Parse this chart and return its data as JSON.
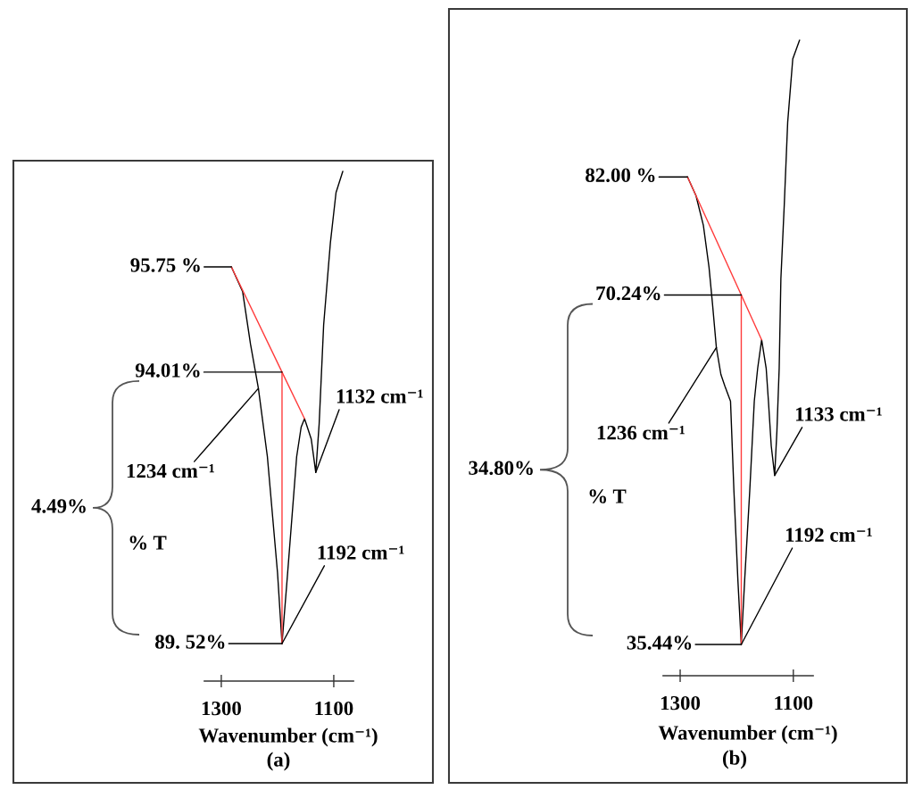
{
  "chart_data": [
    {
      "type": "line",
      "title": "(a)",
      "xlabel": "Wavenumber (cm⁻¹)",
      "ylabel": "% T",
      "xlim": [
        1330,
        1065
      ],
      "xticks": [
        1300,
        1100
      ],
      "tick_labels": "x",
      "series": [
        {
          "color": "#000000",
          "x": [
            1282,
            1262,
            1248,
            1234,
            1218,
            1200,
            1192,
            1182,
            1166,
            1158,
            1152,
            1140,
            1132,
            1126,
            1118,
            1106,
            1096,
            1084
          ],
          "values": [
            95.75,
            95.34,
            94.47,
            93.74,
            92.61,
            90.69,
            89.52,
            90.69,
            92.61,
            93.1,
            93.24,
            92.9,
            92.35,
            93.15,
            94.79,
            96.15,
            96.98,
            97.33
          ],
          "value_labels": [
            "95.75 %",
            null,
            null,
            null,
            null,
            null,
            null,
            null,
            null,
            null,
            null,
            null,
            null,
            null,
            null,
            null,
            null,
            null
          ]
        },
        {
          "color": "#ff3b3b",
          "x": [
            1282,
            1192,
            1152
          ],
          "values": [
            95.75,
            94.01,
            93.24
          ],
          "value_labels": [
            null,
            "94.01%",
            null
          ]
        },
        {
          "color": "#ff3b3b",
          "x": [
            1192,
            1192
          ],
          "values": [
            94.01,
            89.52
          ]
        }
      ],
      "annotations": [
        {
          "text": "89. 52%",
          "x": 1192,
          "y": 89.52
        },
        {
          "text": "1234 cm⁻¹",
          "x": 1234,
          "y": 93.74
        },
        {
          "text": "1132 cm⁻¹",
          "x": 1132,
          "y": 92.35
        },
        {
          "text": "1192 cm⁻¹",
          "x": 1192,
          "y": 89.52
        },
        "4.49%"
      ]
    },
    {
      "type": "line",
      "title": "(b)",
      "xlabel": "Wavenumber (cm⁻¹)",
      "ylabel": "% T",
      "xlim": [
        1330,
        1065
      ],
      "xticks": [
        1300,
        1100
      ],
      "tick_labels": "x",
      "series": [
        {
          "color": "#000000",
          "x": [
            1287,
            1272,
            1259,
            1249,
            1243,
            1236,
            1228,
            1221,
            1211,
            1205,
            1198,
            1192,
            1186,
            1177,
            1169,
            1163,
            1156,
            1148,
            1144,
            1139,
            1133,
            1129,
            1125,
            1122,
            1116,
            1110,
            1101,
            1089
          ],
          "values": [
            82.0,
            80.13,
            77.19,
            73.01,
            69.45,
            65.0,
            62.33,
            61.17,
            59.66,
            50.75,
            41.85,
            35.44,
            41.85,
            50.75,
            59.66,
            62.95,
            65.78,
            62.95,
            59.66,
            55.2,
            52.27,
            56.72,
            62.95,
            71.85,
            79.24,
            87.43,
            93.75,
            95.62
          ],
          "value_labels": [
            "82.00 %",
            null,
            null,
            null,
            null,
            null,
            null,
            null,
            null,
            null,
            null,
            "35.44%",
            null,
            null,
            null,
            null,
            null,
            null,
            null,
            null,
            null,
            null,
            null,
            null,
            null,
            null,
            null,
            null
          ]
        },
        {
          "color": "#ff3b3b",
          "x": [
            1287,
            1192,
            1156
          ],
          "values": [
            82.0,
            70.24,
            65.78
          ],
          "value_labels": [
            null,
            "70.24%",
            null
          ]
        },
        {
          "color": "#ff3b3b",
          "x": [
            1192,
            1192
          ],
          "values": [
            70.24,
            35.44
          ]
        }
      ],
      "annotations": [
        {
          "text": "1236 cm⁻¹",
          "x": 1236,
          "y": 65.0
        },
        {
          "text": "1133 cm⁻¹",
          "x": 1133,
          "y": 52.27
        },
        {
          "text": "1192 cm⁻¹",
          "x": 1192,
          "y": 35.44
        },
        "34.80%"
      ]
    }
  ]
}
